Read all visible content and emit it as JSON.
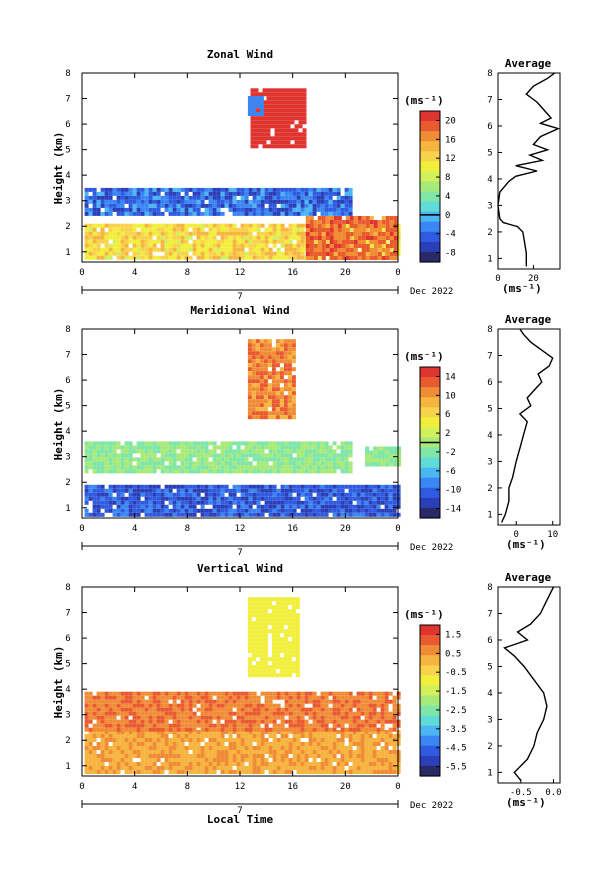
{
  "figure": {
    "xlabel": "Local Time",
    "date_label": "Dec 2022",
    "day_marker": "7",
    "cbar_unit_label": "(ms⁻¹)",
    "avg_unit_label": "(ms⁻¹)"
  },
  "colormap": [
    "#2a2a66",
    "#2b3fb8",
    "#2f5be0",
    "#3a86f2",
    "#4cb6f2",
    "#5fdcd8",
    "#7fe6a8",
    "#a8ea7a",
    "#d2ef5c",
    "#f2ef3c",
    "#f7d24a",
    "#f6b440",
    "#f08c36",
    "#ea5a30",
    "#e03430"
  ],
  "chart_data": [
    {
      "type": "heatmap",
      "title": "Zonal Wind",
      "ylabel": "Height (km)",
      "x_ticks": [
        "0",
        "4",
        "8",
        "12",
        "16",
        "20",
        "0"
      ],
      "y_ticks": [
        "1",
        "2",
        "3",
        "4",
        "5",
        "6",
        "7",
        "8"
      ],
      "xlim": [
        0,
        24
      ],
      "ylim": [
        0.6,
        8
      ],
      "cbar": {
        "min": -10,
        "max": 22,
        "ticks": [
          "20",
          "16",
          "12",
          "8",
          "4",
          "0",
          "-4",
          "-8"
        ],
        "contour_at": 0
      },
      "regions": [
        {
          "x0": 0.2,
          "x1": 24,
          "y0": 0.7,
          "y1": 2.1,
          "value": 12,
          "speckle": 5
        },
        {
          "x0": 17,
          "x1": 24,
          "y0": 0.8,
          "y1": 2.4,
          "value": 18,
          "speckle": 4
        },
        {
          "x0": 0.2,
          "x1": 20.5,
          "y0": 2.4,
          "y1": 3.5,
          "value": -4,
          "speckle": 6
        },
        {
          "x0": 12.8,
          "x1": 16.8,
          "y0": 5.1,
          "y1": 7.4,
          "value": 21,
          "speckle": 1
        },
        {
          "x0": 12.6,
          "x1": 13.6,
          "y0": 6.4,
          "y1": 7.1,
          "value": -3,
          "speckle": 1
        }
      ],
      "average": {
        "title": "Average",
        "x_ticks": [
          "0",
          "20"
        ],
        "xlim": [
          0,
          35
        ],
        "profile": [
          [
            0.7,
            16
          ],
          [
            1.2,
            16
          ],
          [
            1.6,
            15
          ],
          [
            2.0,
            14
          ],
          [
            2.2,
            11
          ],
          [
            2.35,
            3
          ],
          [
            2.5,
            1
          ],
          [
            3.0,
            0
          ],
          [
            3.5,
            1
          ],
          [
            3.9,
            6
          ],
          [
            4.1,
            10
          ],
          [
            4.3,
            22
          ],
          [
            4.5,
            10
          ],
          [
            4.7,
            25
          ],
          [
            4.9,
            18
          ],
          [
            5.1,
            28
          ],
          [
            5.3,
            20
          ],
          [
            5.6,
            24
          ],
          [
            5.9,
            34
          ],
          [
            6.1,
            24
          ],
          [
            6.3,
            30
          ],
          [
            6.6,
            26
          ],
          [
            6.9,
            22
          ],
          [
            7.2,
            16
          ],
          [
            7.5,
            20
          ],
          [
            7.8,
            28
          ],
          [
            8.0,
            32
          ]
        ]
      }
    },
    {
      "type": "heatmap",
      "title": "Meridional Wind",
      "ylabel": "Height (km)",
      "x_ticks": [
        "0",
        "4",
        "8",
        "12",
        "16",
        "20",
        "0"
      ],
      "y_ticks": [
        "1",
        "2",
        "3",
        "4",
        "5",
        "6",
        "7",
        "8"
      ],
      "xlim": [
        0,
        24
      ],
      "ylim": [
        0.6,
        8
      ],
      "cbar": {
        "min": -16,
        "max": 16,
        "ticks": [
          "14",
          "10",
          "6",
          "2",
          "-2",
          "-6",
          "-10",
          "-14"
        ],
        "contour_at": 0
      },
      "regions": [
        {
          "x0": 0.2,
          "x1": 24,
          "y0": 0.7,
          "y1": 1.9,
          "value": -11,
          "speckle": 4
        },
        {
          "x0": 0.2,
          "x1": 20.5,
          "y0": 2.4,
          "y1": 3.6,
          "value": -1,
          "speckle": 3
        },
        {
          "x0": 21.5,
          "x1": 24,
          "y0": 2.7,
          "y1": 3.4,
          "value": -1,
          "speckle": 3
        },
        {
          "x0": 12.6,
          "x1": 16.2,
          "y0": 4.5,
          "y1": 7.6,
          "value": 11,
          "speckle": 4
        }
      ],
      "average": {
        "title": "Average",
        "x_ticks": [
          "0",
          "10"
        ],
        "xlim": [
          -5,
          12
        ],
        "profile": [
          [
            0.7,
            -4
          ],
          [
            1.0,
            -3
          ],
          [
            1.5,
            -2
          ],
          [
            2.0,
            -2
          ],
          [
            2.4,
            -1
          ],
          [
            3.0,
            0
          ],
          [
            3.5,
            1
          ],
          [
            4.0,
            2
          ],
          [
            4.5,
            3
          ],
          [
            4.8,
            1
          ],
          [
            5.1,
            4
          ],
          [
            5.4,
            3
          ],
          [
            5.7,
            5
          ],
          [
            6.0,
            7
          ],
          [
            6.3,
            6
          ],
          [
            6.6,
            9
          ],
          [
            6.9,
            10
          ],
          [
            7.2,
            7
          ],
          [
            7.5,
            4
          ],
          [
            7.8,
            2
          ],
          [
            8.0,
            1
          ]
        ]
      }
    },
    {
      "type": "heatmap",
      "title": "Vertical Wind",
      "ylabel": "Height (km)",
      "x_ticks": [
        "0",
        "4",
        "8",
        "12",
        "16",
        "20",
        "0"
      ],
      "y_ticks": [
        "1",
        "2",
        "3",
        "4",
        "5",
        "6",
        "7",
        "8"
      ],
      "xlim": [
        0,
        24
      ],
      "ylim": [
        0.6,
        8
      ],
      "cbar": {
        "min": -6,
        "max": 2,
        "ticks": [
          "1.5",
          "0.5",
          "-0.5",
          "-1.5",
          "-2.5",
          "-3.5",
          "-4.5",
          "-5.5"
        ],
        "contour_at": null
      },
      "regions": [
        {
          "x0": 0.2,
          "x1": 24,
          "y0": 0.7,
          "y1": 2.4,
          "value": 0.3,
          "speckle": 2
        },
        {
          "x0": 0.2,
          "x1": 24,
          "y0": 2.4,
          "y1": 3.9,
          "value": 0.9,
          "speckle": 1
        },
        {
          "x0": 12.6,
          "x1": 16.4,
          "y0": 4.6,
          "y1": 7.6,
          "value": -0.9,
          "speckle": 1
        }
      ],
      "average": {
        "title": "Average",
        "x_ticks": [
          "-0.5",
          "0.0"
        ],
        "xlim": [
          -0.85,
          0.1
        ],
        "profile": [
          [
            0.7,
            -0.5
          ],
          [
            1.0,
            -0.6
          ],
          [
            1.5,
            -0.4
          ],
          [
            2.0,
            -0.3
          ],
          [
            2.5,
            -0.25
          ],
          [
            3.0,
            -0.15
          ],
          [
            3.5,
            -0.1
          ],
          [
            4.0,
            -0.15
          ],
          [
            4.5,
            -0.3
          ],
          [
            5.0,
            -0.45
          ],
          [
            5.4,
            -0.6
          ],
          [
            5.7,
            -0.75
          ],
          [
            6.0,
            -0.4
          ],
          [
            6.3,
            -0.55
          ],
          [
            6.6,
            -0.35
          ],
          [
            7.0,
            -0.2
          ],
          [
            7.5,
            -0.1
          ],
          [
            8.0,
            0.0
          ]
        ]
      }
    }
  ]
}
